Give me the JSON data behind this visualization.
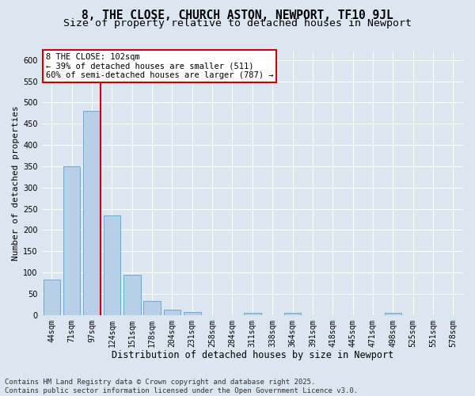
{
  "title": "8, THE CLOSE, CHURCH ASTON, NEWPORT, TF10 9JL",
  "subtitle": "Size of property relative to detached houses in Newport",
  "xlabel": "Distribution of detached houses by size in Newport",
  "ylabel": "Number of detached properties",
  "categories": [
    "44sqm",
    "71sqm",
    "97sqm",
    "124sqm",
    "151sqm",
    "178sqm",
    "204sqm",
    "231sqm",
    "258sqm",
    "284sqm",
    "311sqm",
    "338sqm",
    "364sqm",
    "391sqm",
    "418sqm",
    "445sqm",
    "471sqm",
    "498sqm",
    "525sqm",
    "551sqm",
    "578sqm"
  ],
  "values": [
    83,
    350,
    480,
    235,
    95,
    33,
    13,
    7,
    0,
    0,
    6,
    0,
    6,
    0,
    0,
    0,
    0,
    5,
    0,
    0,
    0
  ],
  "bar_color": "#b8cfe8",
  "bar_edge_color": "#6aaad4",
  "red_line_index": 2,
  "red_line_color": "#cc0000",
  "annotation_text": "8 THE CLOSE: 102sqm\n← 39% of detached houses are smaller (511)\n60% of semi-detached houses are larger (787) →",
  "annotation_box_color": "#ffffff",
  "annotation_box_edge": "#cc0000",
  "background_color": "#dce6f0",
  "grid_color": "#ffffff",
  "ylim": [
    0,
    620
  ],
  "yticks": [
    0,
    50,
    100,
    150,
    200,
    250,
    300,
    350,
    400,
    450,
    500,
    550,
    600
  ],
  "footer_text": "Contains HM Land Registry data © Crown copyright and database right 2025.\nContains public sector information licensed under the Open Government Licence v3.0.",
  "title_fontsize": 10.5,
  "subtitle_fontsize": 9.5,
  "xlabel_fontsize": 8.5,
  "ylabel_fontsize": 8,
  "tick_fontsize": 7,
  "footer_fontsize": 6.5,
  "annotation_fontsize": 7.5
}
